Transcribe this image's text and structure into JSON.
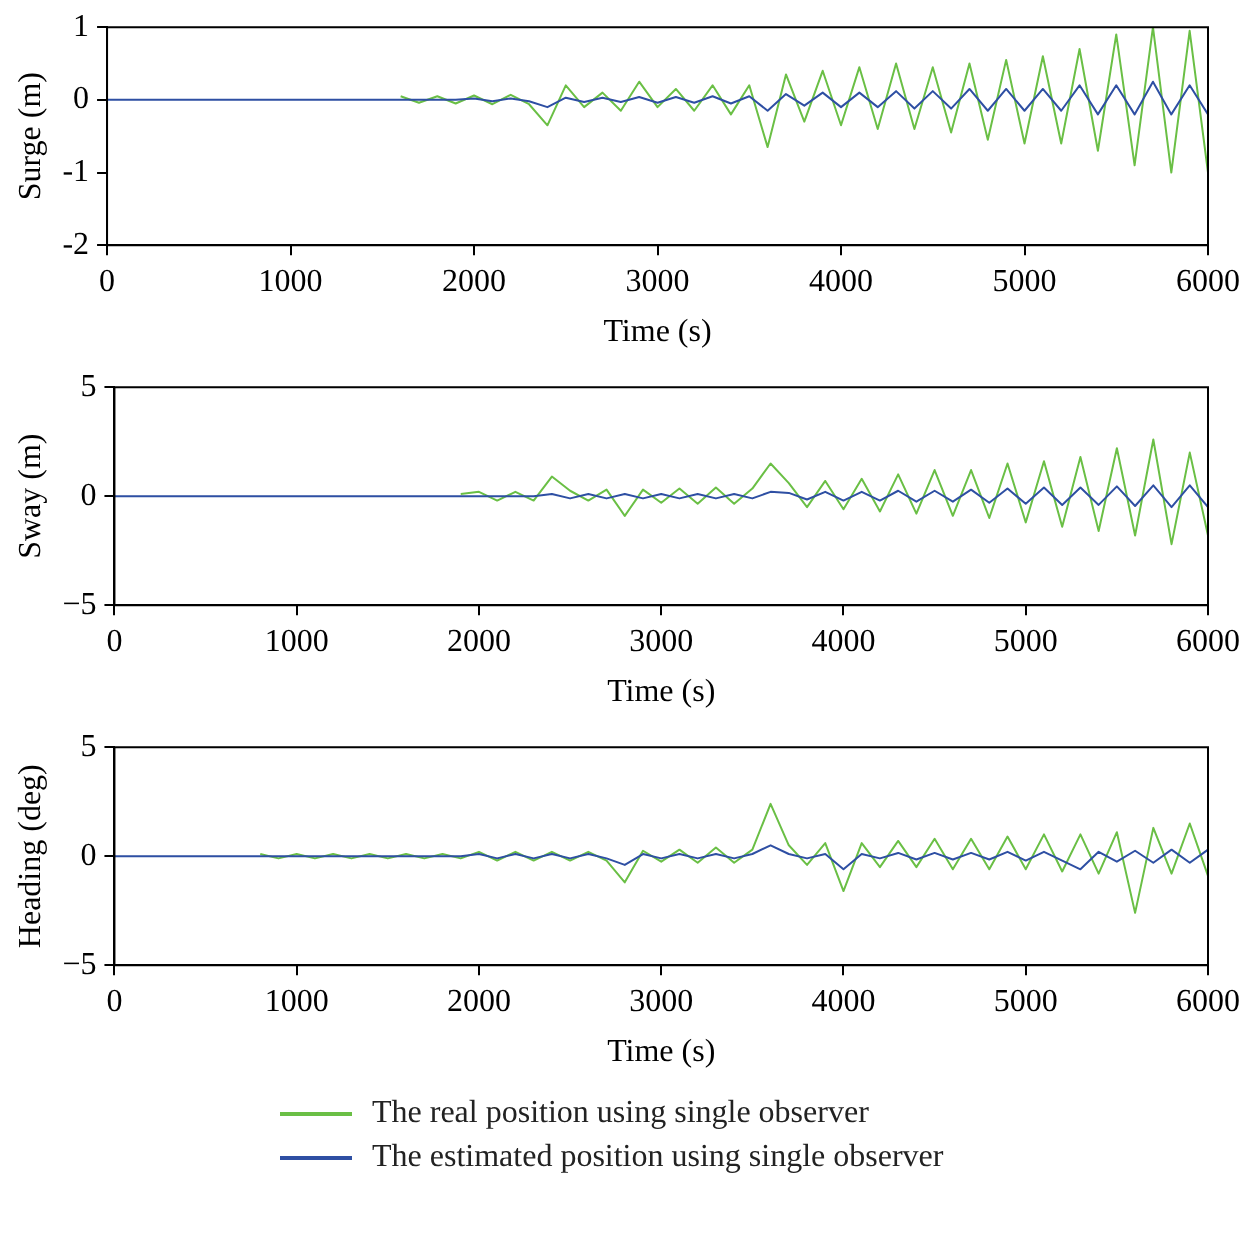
{
  "chart_data": [
    {
      "type": "line",
      "xlabel": "Time (s)",
      "ylabel": "Surge (m)",
      "xlim": [
        0,
        6000
      ],
      "xticks": [
        0,
        1000,
        2000,
        3000,
        4000,
        5000,
        6000
      ],
      "ylim": [
        -2,
        1
      ],
      "yticks": [
        -2,
        -1,
        0,
        1
      ],
      "x": [
        0,
        100,
        200,
        300,
        400,
        500,
        600,
        700,
        800,
        900,
        1000,
        1100,
        1200,
        1300,
        1400,
        1500,
        1600,
        1700,
        1800,
        1900,
        2000,
        2100,
        2200,
        2300,
        2400,
        2500,
        2600,
        2700,
        2800,
        2900,
        3000,
        3100,
        3200,
        3300,
        3400,
        3500,
        3600,
        3700,
        3800,
        3900,
        4000,
        4100,
        4200,
        4300,
        4400,
        4500,
        4600,
        4700,
        4800,
        4900,
        5000,
        5100,
        5200,
        5300,
        5400,
        5500,
        5600,
        5700,
        5800,
        5900,
        6000
      ],
      "series": [
        {
          "color": "#6abf45",
          "values": [
            null,
            null,
            null,
            null,
            null,
            null,
            null,
            null,
            null,
            null,
            null,
            null,
            null,
            null,
            null,
            null,
            0.05,
            -0.04,
            0.05,
            -0.05,
            0.06,
            -0.06,
            0.07,
            -0.06,
            -0.35,
            0.2,
            -0.1,
            0.1,
            -0.15,
            0.25,
            -0.1,
            0.15,
            -0.15,
            0.2,
            -0.2,
            0.2,
            -0.65,
            0.35,
            -0.3,
            0.4,
            -0.35,
            0.45,
            -0.4,
            0.5,
            -0.4,
            0.45,
            -0.45,
            0.5,
            -0.55,
            0.55,
            -0.6,
            0.6,
            -0.6,
            0.7,
            -0.7,
            0.9,
            -0.9,
            1.0,
            -1.0,
            0.95,
            -1.0
          ]
        },
        {
          "color": "#2e4fa3",
          "values": [
            0,
            0,
            0,
            0,
            0,
            0,
            0,
            0,
            0,
            0,
            0,
            0,
            0,
            0,
            0,
            0,
            0,
            0,
            0,
            0,
            0.02,
            -0.02,
            0.02,
            -0.02,
            -0.1,
            0.03,
            -0.03,
            0.03,
            -0.03,
            0.04,
            -0.04,
            0.04,
            -0.04,
            0.05,
            -0.05,
            0.05,
            -0.15,
            0.08,
            -0.08,
            0.1,
            -0.1,
            0.1,
            -0.1,
            0.12,
            -0.12,
            0.12,
            -0.12,
            0.15,
            -0.15,
            0.15,
            -0.15,
            0.15,
            -0.15,
            0.2,
            -0.2,
            0.2,
            -0.2,
            0.25,
            -0.2,
            0.2,
            -0.2
          ]
        }
      ]
    },
    {
      "type": "line",
      "xlabel": "Time (s)",
      "ylabel": "Sway (m)",
      "xlim": [
        0,
        6000
      ],
      "xticks": [
        0,
        1000,
        2000,
        3000,
        4000,
        5000,
        6000
      ],
      "ylim": [
        -5,
        5
      ],
      "yticks": [
        {
          "value": -5,
          "label": "−5"
        },
        0,
        5
      ],
      "x": [
        0,
        100,
        200,
        300,
        400,
        500,
        600,
        700,
        800,
        900,
        1000,
        1100,
        1200,
        1300,
        1400,
        1500,
        1600,
        1700,
        1800,
        1900,
        2000,
        2100,
        2200,
        2300,
        2400,
        2500,
        2600,
        2700,
        2800,
        2900,
        3000,
        3100,
        3200,
        3300,
        3400,
        3500,
        3600,
        3700,
        3800,
        3900,
        4000,
        4100,
        4200,
        4300,
        4400,
        4500,
        4600,
        4700,
        4800,
        4900,
        5000,
        5100,
        5200,
        5300,
        5400,
        5500,
        5600,
        5700,
        5800,
        5900,
        6000
      ],
      "series": [
        {
          "color": "#6abf45",
          "values": [
            null,
            null,
            null,
            null,
            null,
            null,
            null,
            null,
            null,
            null,
            null,
            null,
            null,
            null,
            null,
            null,
            null,
            null,
            null,
            0.1,
            0.2,
            -0.2,
            0.2,
            -0.2,
            0.9,
            0.25,
            -0.2,
            0.3,
            -0.9,
            0.3,
            -0.3,
            0.35,
            -0.35,
            0.4,
            -0.35,
            0.35,
            1.5,
            0.6,
            -0.5,
            0.7,
            -0.6,
            0.8,
            -0.7,
            1.0,
            -0.8,
            1.2,
            -0.9,
            1.2,
            -1.0,
            1.5,
            -1.2,
            1.6,
            -1.4,
            1.8,
            -1.6,
            2.2,
            -1.8,
            2.6,
            -2.2,
            2.0,
            -1.8
          ]
        },
        {
          "color": "#2e4fa3",
          "values": [
            0,
            0,
            0,
            0,
            0,
            0,
            0,
            0,
            0,
            0,
            0,
            0,
            0,
            0,
            0,
            0,
            0,
            0,
            0,
            0,
            0,
            0,
            0,
            0,
            0.1,
            -0.1,
            0.1,
            -0.1,
            0.1,
            -0.1,
            0.1,
            -0.1,
            0.1,
            -0.1,
            0.1,
            -0.1,
            0.2,
            0.15,
            -0.15,
            0.2,
            -0.2,
            0.2,
            -0.2,
            0.25,
            -0.25,
            0.25,
            -0.25,
            0.3,
            -0.3,
            0.35,
            -0.35,
            0.4,
            -0.4,
            0.4,
            -0.4,
            0.45,
            -0.45,
            0.5,
            -0.5,
            0.5,
            -0.5
          ]
        }
      ]
    },
    {
      "type": "line",
      "xlabel": "Time (s)",
      "ylabel": "Heading (deg)",
      "xlim": [
        0,
        6000
      ],
      "xticks": [
        0,
        1000,
        2000,
        3000,
        4000,
        5000,
        6000
      ],
      "ylim": [
        -5,
        5
      ],
      "yticks": [
        {
          "value": -5,
          "label": "−5"
        },
        0,
        5
      ],
      "legend": "bottom",
      "x": [
        0,
        100,
        200,
        300,
        400,
        500,
        600,
        700,
        800,
        900,
        1000,
        1100,
        1200,
        1300,
        1400,
        1500,
        1600,
        1700,
        1800,
        1900,
        2000,
        2100,
        2200,
        2300,
        2400,
        2500,
        2600,
        2700,
        2800,
        2900,
        3000,
        3100,
        3200,
        3300,
        3400,
        3500,
        3600,
        3700,
        3800,
        3900,
        4000,
        4100,
        4200,
        4300,
        4400,
        4500,
        4600,
        4700,
        4800,
        4900,
        5000,
        5100,
        5200,
        5300,
        5400,
        5500,
        5600,
        5700,
        5800,
        5900,
        6000
      ],
      "series": [
        {
          "name": "The real position using single observer",
          "color": "#6abf45",
          "values": [
            null,
            null,
            null,
            null,
            null,
            null,
            null,
            null,
            0.1,
            -0.1,
            0.1,
            -0.1,
            0.1,
            -0.1,
            0.1,
            -0.1,
            0.1,
            -0.1,
            0.1,
            -0.1,
            0.2,
            -0.2,
            0.2,
            -0.2,
            0.2,
            -0.2,
            0.2,
            -0.2,
            -1.2,
            0.25,
            -0.25,
            0.3,
            -0.3,
            0.4,
            -0.3,
            0.3,
            2.4,
            0.5,
            -0.4,
            0.6,
            -1.6,
            0.6,
            -0.5,
            0.7,
            -0.5,
            0.8,
            -0.6,
            0.8,
            -0.6,
            0.9,
            -0.6,
            1.0,
            -0.7,
            1.0,
            -0.8,
            1.1,
            -2.6,
            1.3,
            -0.8,
            1.5,
            -0.9
          ]
        },
        {
          "name": "The estimated position using single observer",
          "color": "#2e4fa3",
          "values": [
            0,
            0,
            0,
            0,
            0,
            0,
            0,
            0,
            0,
            0,
            0,
            0,
            0,
            0,
            0,
            0,
            0,
            0,
            0,
            0,
            0.1,
            -0.1,
            0.1,
            -0.1,
            0.1,
            -0.1,
            0.1,
            -0.1,
            -0.4,
            0.1,
            -0.1,
            0.1,
            -0.1,
            0.1,
            -0.1,
            0.1,
            0.5,
            0.1,
            -0.1,
            0.1,
            -0.6,
            0.1,
            -0.1,
            0.15,
            -0.15,
            0.15,
            -0.15,
            0.15,
            -0.15,
            0.2,
            -0.2,
            0.2,
            -0.2,
            -0.6,
            0.2,
            -0.25,
            0.25,
            -0.3,
            0.3,
            -0.3,
            0.3
          ]
        }
      ]
    }
  ]
}
